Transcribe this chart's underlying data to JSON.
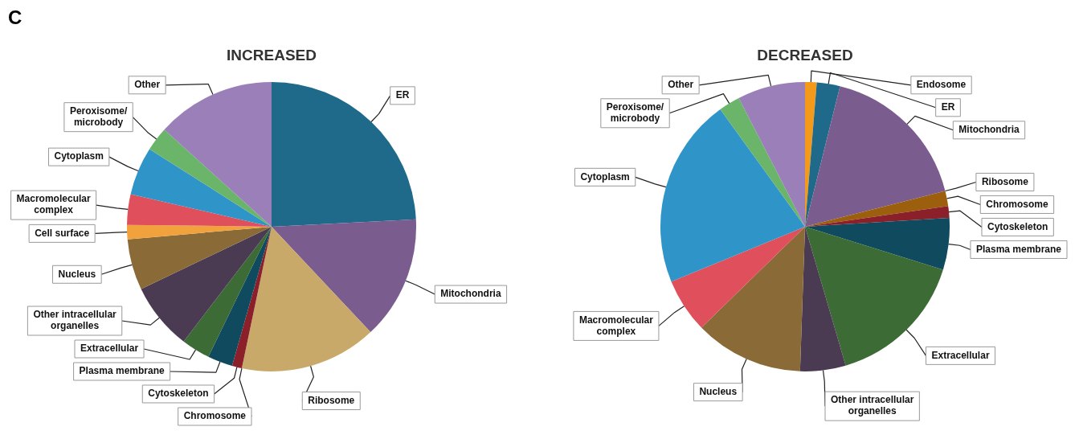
{
  "chart_data": [
    {
      "type": "pie",
      "title": "INCREASED",
      "annotations": [
        "C"
      ],
      "categories": [
        "ER",
        "Mitochondria",
        "Ribosome",
        "Chromosome",
        "Cytoskeleton",
        "Plasma membrane",
        "Extracellular",
        "Other intracellular organelles",
        "Nucleus",
        "Cell surface",
        "Macromolecular complex",
        "Cytoplasm",
        "Peroxisome/ microbody",
        "Other"
      ],
      "values": [
        24.2,
        13.8,
        15.3,
        0,
        1.1,
        2.8,
        3.2,
        7.5,
        5.7,
        1.6,
        3.4,
        5.4,
        2.7,
        13.3
      ],
      "colors": [
        "#1f6a8a",
        "#7a5c8e",
        "#c8a96a",
        "#9c5f0d",
        "#8b1f2a",
        "#0f4a5e",
        "#3c6b35",
        "#4b3b52",
        "#8a6a37",
        "#f2a23c",
        "#e0505c",
        "#2f95c8",
        "#6ab56a",
        "#9a7fb9"
      ]
    },
    {
      "type": "pie",
      "title": "DECREASED",
      "categories": [
        "Endosome",
        "ER",
        "Mitochondria",
        "Ribosome",
        "Chromosome",
        "Cytoskeleton",
        "Plasma membrane",
        "Extracellular",
        "Other intracellular organelles",
        "Nucleus",
        "Macromolecular complex",
        "Cytoplasm",
        "Peroxisome/ microbody",
        "Other"
      ],
      "values": [
        1.3,
        2.6,
        17.2,
        0,
        1.7,
        1.3,
        5.8,
        15.7,
        5.1,
        12.2,
        6.1,
        21.3,
        2.4,
        7.6
      ],
      "colors": [
        "#f39a1b",
        "#1f6a8a",
        "#7a5c8e",
        "#c8a96a",
        "#9c5f0d",
        "#8b1f2a",
        "#0f4a5e",
        "#3c6b35",
        "#4b3b52",
        "#8a6a37",
        "#e0505c",
        "#2f95c8",
        "#6ab56a",
        "#9a7fb9"
      ]
    }
  ]
}
